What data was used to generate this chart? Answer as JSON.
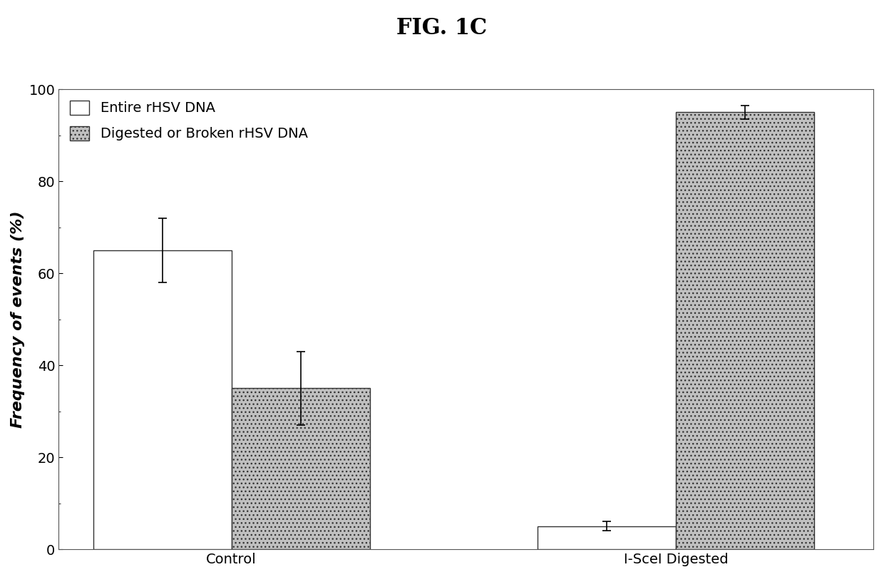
{
  "title": "FIG. 1C",
  "ylabel": "Frequency of events (%)",
  "categories": [
    "Control",
    "I-SceI Digested"
  ],
  "series": [
    {
      "name": "Entire rHSV DNA",
      "values": [
        65,
        5
      ],
      "errors": [
        7,
        1
      ],
      "facecolor": "white",
      "edgecolor": "#333333",
      "hatch": ""
    },
    {
      "name": "Digested or Broken rHSV DNA",
      "values": [
        35,
        95
      ],
      "errors": [
        8,
        1.5
      ],
      "facecolor": "#c0c0c0",
      "edgecolor": "#333333",
      "hatch": "..."
    }
  ],
  "ylim": [
    0,
    100
  ],
  "yticks": [
    0,
    20,
    40,
    60,
    80,
    100
  ],
  "bar_width": 0.28,
  "title_fontsize": 22,
  "label_fontsize": 16,
  "tick_fontsize": 14,
  "legend_fontsize": 14,
  "background_color": "#ffffff",
  "group_centers": [
    0.35,
    1.25
  ]
}
